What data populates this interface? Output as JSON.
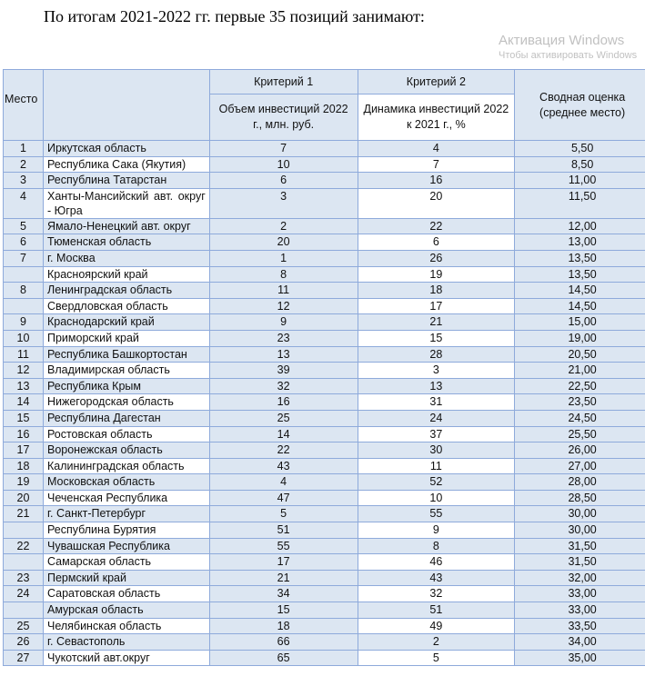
{
  "title": "По итогам  2021-2022 гг. первые 35 позиций занимают:",
  "header": {
    "place": "Место",
    "crit1": "Критерий 1",
    "crit2": "Критерий 2",
    "col1": "Объем инвестиций 2022 г., млн. руб.",
    "col2": "Динамика инвестиций 2022 к 2021 г., %",
    "summary": "Сводная оценка (среднее место)"
  },
  "rows": [
    [
      "1",
      "Иркутская область",
      "7",
      "4",
      "5,50"
    ],
    [
      "2",
      "Республика Сака (Якутия)",
      "10",
      "7",
      "8,50"
    ],
    [
      "3",
      "Республина Татарстан",
      "6",
      "16",
      "11,00"
    ],
    [
      "4",
      "Ханты-Мансийский авт. округ - Югра",
      "3",
      "20",
      "11,50"
    ],
    [
      "5",
      "Ямало-Ненецкий авт. округ",
      "2",
      "22",
      "12,00"
    ],
    [
      "6",
      "Тюменская область",
      "20",
      "6",
      "13,00"
    ],
    [
      "7",
      "г. Москва",
      "1",
      "26",
      "13,50"
    ],
    [
      "",
      "Красноярский край",
      "8",
      "19",
      "13,50"
    ],
    [
      "8",
      "Ленинградская область",
      "11",
      "18",
      "14,50"
    ],
    [
      "",
      "Свердловская область",
      "12",
      "17",
      "14,50"
    ],
    [
      "9",
      "Краснодарский край",
      "9",
      "21",
      "15,00"
    ],
    [
      "10",
      "Приморский край",
      "23",
      "15",
      "19,00"
    ],
    [
      "11",
      "Республика Башкортостан",
      "13",
      "28",
      "20,50"
    ],
    [
      "12",
      "Владимирская область",
      "39",
      "3",
      "21,00"
    ],
    [
      "13",
      "Республика Крым",
      "32",
      "13",
      "22,50"
    ],
    [
      "14",
      "Нижегородская область",
      "16",
      "31",
      "23,50"
    ],
    [
      "15",
      "Республина Дагестан",
      "25",
      "24",
      "24,50"
    ],
    [
      "16",
      "Ростовская область",
      "14",
      "37",
      "25,50"
    ],
    [
      "17",
      "Воронежская область",
      "22",
      "30",
      "26,00"
    ],
    [
      "18",
      "Калининградская область",
      "43",
      "11",
      "27,00"
    ],
    [
      "19",
      "Московская область",
      "4",
      "52",
      "28,00"
    ],
    [
      "20",
      "Чеченская Республика",
      "47",
      "10",
      "28,50"
    ],
    [
      "21",
      "г. Санкт-Петербург",
      "5",
      "55",
      "30,00"
    ],
    [
      "",
      "Республина Бурятия",
      "51",
      "9",
      "30,00"
    ],
    [
      "22",
      "Чувашская Республика",
      "55",
      "8",
      "31,50"
    ],
    [
      "",
      "Самарская область",
      "17",
      "46",
      "31,50"
    ],
    [
      "23",
      "Пермский край",
      "21",
      "43",
      "32,00"
    ],
    [
      "24",
      "Саратовская область",
      "34",
      "32",
      "33,00"
    ],
    [
      "",
      "Амурская область",
      "15",
      "51",
      "33,00"
    ],
    [
      "25",
      "Челябинская область",
      "18",
      "49",
      "33,50"
    ],
    [
      "26",
      "г. Севастополь",
      "66",
      "2",
      "34,00"
    ],
    [
      "27",
      "Чукотский авт.округ",
      "65",
      "5",
      "35,00"
    ]
  ],
  "watermark": {
    "line1": "Активация Windows",
    "line2": "Чтобы активировать Windows"
  }
}
